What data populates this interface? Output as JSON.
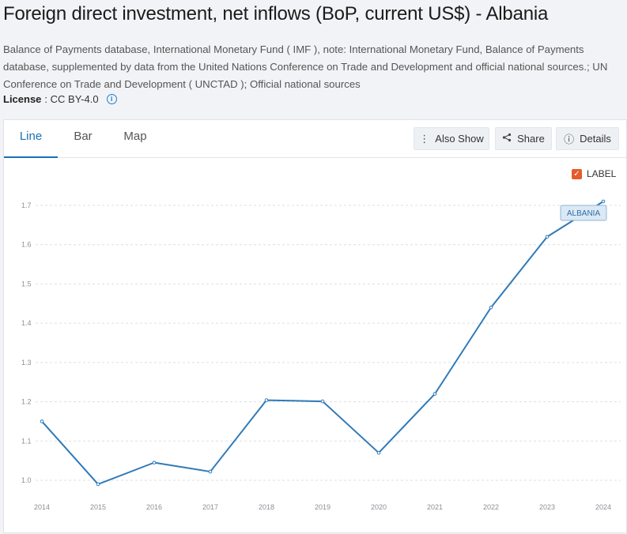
{
  "page": {
    "title": "Foreign direct investment, net inflows (BoP, current US$) - Albania",
    "source_text": "Balance of Payments database, International Monetary Fund ( IMF ), note: International Monetary Fund, Balance of Payments database, supplemented by data from the United Nations Conference on Trade and Development and official national sources.; UN Conference on Trade and Development ( UNCTAD ); Official national sources",
    "license_label": "License",
    "license_value": ": CC BY-4.0"
  },
  "tabs": [
    {
      "label": "Line",
      "active": true
    },
    {
      "label": "Bar",
      "active": false
    },
    {
      "label": "Map",
      "active": false
    }
  ],
  "actions": {
    "also_show": "Also Show",
    "share": "Share",
    "details": "Details"
  },
  "label_toggle": {
    "text": "LABEL",
    "checked": true,
    "color": "#e55b2d"
  },
  "chart_data": {
    "type": "line",
    "x": [
      "2014",
      "2015",
      "2016",
      "2017",
      "2018",
      "2019",
      "2020",
      "2021",
      "2022",
      "2023",
      "2024"
    ],
    "series": [
      {
        "name": "ALBANIA",
        "color": "#2f7ab8",
        "values": [
          1.15,
          0.99,
          1.045,
          1.022,
          1.204,
          1.201,
          1.07,
          1.22,
          1.44,
          1.62,
          1.71
        ]
      }
    ],
    "yticks": [
      "1.0",
      "1.1",
      "1.2",
      "1.3",
      "1.4",
      "1.5",
      "1.6",
      "1.7"
    ],
    "ylim": [
      1.0,
      1.7
    ],
    "grid": true
  }
}
